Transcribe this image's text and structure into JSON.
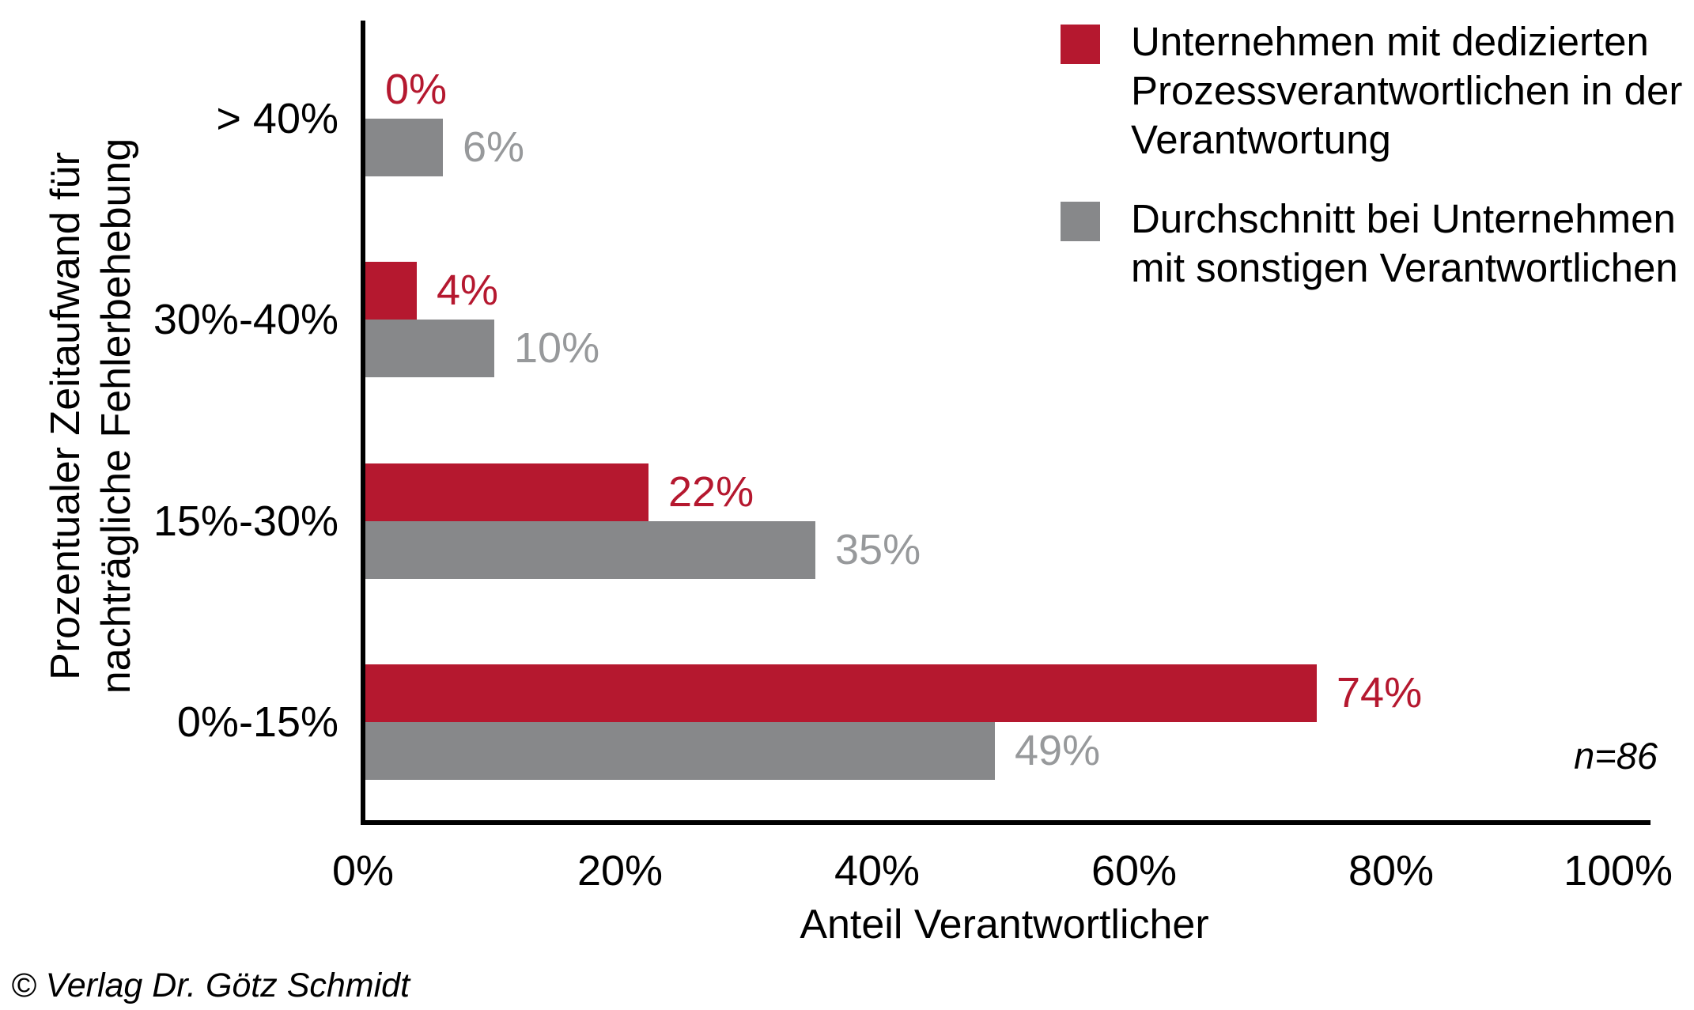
{
  "chart_data": {
    "type": "bar",
    "orientation": "horizontal",
    "categories": [
      "> 40%",
      "30%-40%",
      "15%-30%",
      "0%-15%"
    ],
    "series": [
      {
        "name": "Unternehmen mit dedizierten Prozessverantwortlichen in der Verantwortung",
        "color": "#B5182F",
        "label_color": "#B5182F",
        "values": [
          0,
          4,
          22,
          74
        ],
        "data_labels": [
          "0%",
          "4%",
          "22%",
          "74%"
        ]
      },
      {
        "name": "Durchschnitt bei Unternehmen mit sonstigen Verantwortlichen",
        "color": "#87888A",
        "label_color": "#97999B",
        "values": [
          6,
          10,
          35,
          49
        ],
        "data_labels": [
          "6%",
          "10%",
          "35%",
          "49%"
        ]
      }
    ],
    "xlabel": "Anteil Verantwortlicher",
    "ylabel": "Prozentualer Zeitaufwand für nachträgliche Fehlerbehebung",
    "xlim": [
      0,
      100
    ],
    "xtick_labels": [
      "0%",
      "20%",
      "40%",
      "60%",
      "80%",
      "100%"
    ],
    "grid": false,
    "legend_position": "top-right",
    "sample_size_note": "n=86"
  },
  "y_axis_title_lines": [
    "Prozentualer Zeitaufwand für",
    "nachträgliche Fehlerbehebung"
  ],
  "legend": {
    "items": [
      {
        "color": "#B5182F",
        "lines": [
          "Unternehmen mit dedizierten",
          "Prozessverantwortlichen in der",
          "Verantwortung"
        ]
      },
      {
        "color": "#87888A",
        "lines": [
          "Durchschnitt bei Unternehmen",
          "mit sonstigen Verantwortlichen"
        ]
      }
    ]
  },
  "annotation": {
    "sample_size": "n=86"
  },
  "footer": {
    "copyright": "© Verlag Dr. Götz Schmidt"
  }
}
